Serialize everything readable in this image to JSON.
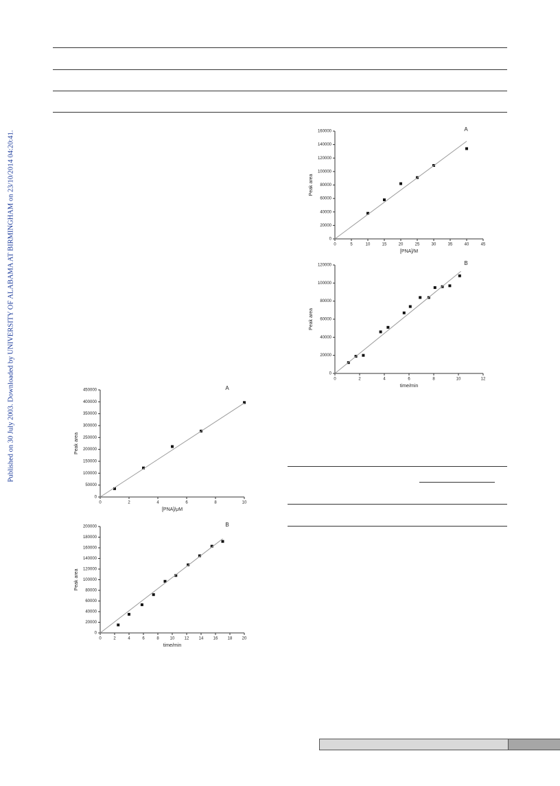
{
  "side_note": "Published on 30 July 2003. Downloaded by UNIVERSITY OF ALABAMA AT BIRMINGHAM on 23/10/2014 04:20:41.",
  "chart_data": [
    {
      "type": "scatter",
      "title": "A",
      "x_label": "[PNA]/M",
      "y_label": "Peak area",
      "xlim": [
        0,
        45
      ],
      "xticks": [
        0,
        5,
        10,
        15,
        20,
        25,
        30,
        35,
        40,
        45
      ],
      "ylim": [
        0,
        160000
      ],
      "yticks": [
        0,
        20000,
        40000,
        60000,
        80000,
        100000,
        120000,
        140000,
        160000
      ],
      "series": [
        {
          "mode": "markers",
          "color": "#111111",
          "x": [
            10,
            15,
            20,
            25,
            30,
            40
          ],
          "values": [
            38000,
            58000,
            82000,
            91000,
            109000,
            134000
          ]
        },
        {
          "mode": "line",
          "color": "#9a9a9a",
          "x": [
            0,
            40
          ],
          "values": [
            0,
            145000
          ]
        }
      ]
    },
    {
      "type": "scatter",
      "title": "B",
      "x_label": "time/min",
      "y_label": "Peak area",
      "xlim": [
        0,
        12
      ],
      "xticks": [
        0,
        2,
        4,
        6,
        8,
        10,
        12
      ],
      "ylim": [
        0,
        120000
      ],
      "yticks": [
        0,
        20000,
        40000,
        60000,
        80000,
        100000,
        120000
      ],
      "series": [
        {
          "mode": "markers",
          "color": "#111111",
          "x": [
            1.1,
            1.7,
            2.3,
            3.7,
            4.3,
            5.6,
            6.1,
            6.9,
            7.6,
            8.1,
            8.7,
            9.3,
            10.1
          ],
          "values": [
            12000,
            19000,
            20000,
            46000,
            51000,
            67000,
            74000,
            84000,
            84000,
            95000,
            96000,
            97000,
            108000
          ]
        },
        {
          "mode": "line",
          "color": "#9a9a9a",
          "x": [
            0,
            10.2
          ],
          "values": [
            0,
            113000
          ]
        }
      ]
    },
    {
      "type": "scatter",
      "title": "A",
      "x_label": "[PNA]/μM",
      "y_label": "Peak area",
      "xlim": [
        0,
        10
      ],
      "xticks": [
        0,
        2,
        4,
        6,
        8,
        10
      ],
      "ylim": [
        0,
        450000
      ],
      "yticks": [
        0,
        50000,
        100000,
        150000,
        200000,
        250000,
        300000,
        350000,
        400000,
        450000
      ],
      "series": [
        {
          "mode": "markers",
          "color": "#111111",
          "x": [
            1,
            3,
            5,
            7,
            10
          ],
          "values": [
            35000,
            122000,
            212000,
            277000,
            397000
          ]
        },
        {
          "mode": "line",
          "color": "#9a9a9a",
          "x": [
            0,
            10
          ],
          "values": [
            0,
            395000
          ]
        }
      ]
    },
    {
      "type": "scatter",
      "title": "B",
      "x_label": "time/min",
      "y_label": "Peak area",
      "xlim": [
        0,
        20
      ],
      "xticks": [
        0,
        2,
        4,
        6,
        8,
        10,
        12,
        14,
        16,
        18,
        20
      ],
      "ylim": [
        0,
        200000
      ],
      "yticks": [
        0,
        20000,
        40000,
        60000,
        80000,
        100000,
        120000,
        140000,
        160000,
        180000,
        200000
      ],
      "series": [
        {
          "mode": "markers",
          "color": "#111111",
          "x": [
            2.5,
            4,
            5.8,
            7.4,
            9,
            10.5,
            12.2,
            13.8,
            15.5,
            17
          ],
          "values": [
            15000,
            35000,
            53000,
            72000,
            97000,
            108000,
            128000,
            145000,
            163000,
            172000
          ]
        },
        {
          "mode": "line",
          "color": "#9a9a9a",
          "x": [
            0,
            17
          ],
          "values": [
            0,
            177000
          ]
        }
      ]
    }
  ]
}
